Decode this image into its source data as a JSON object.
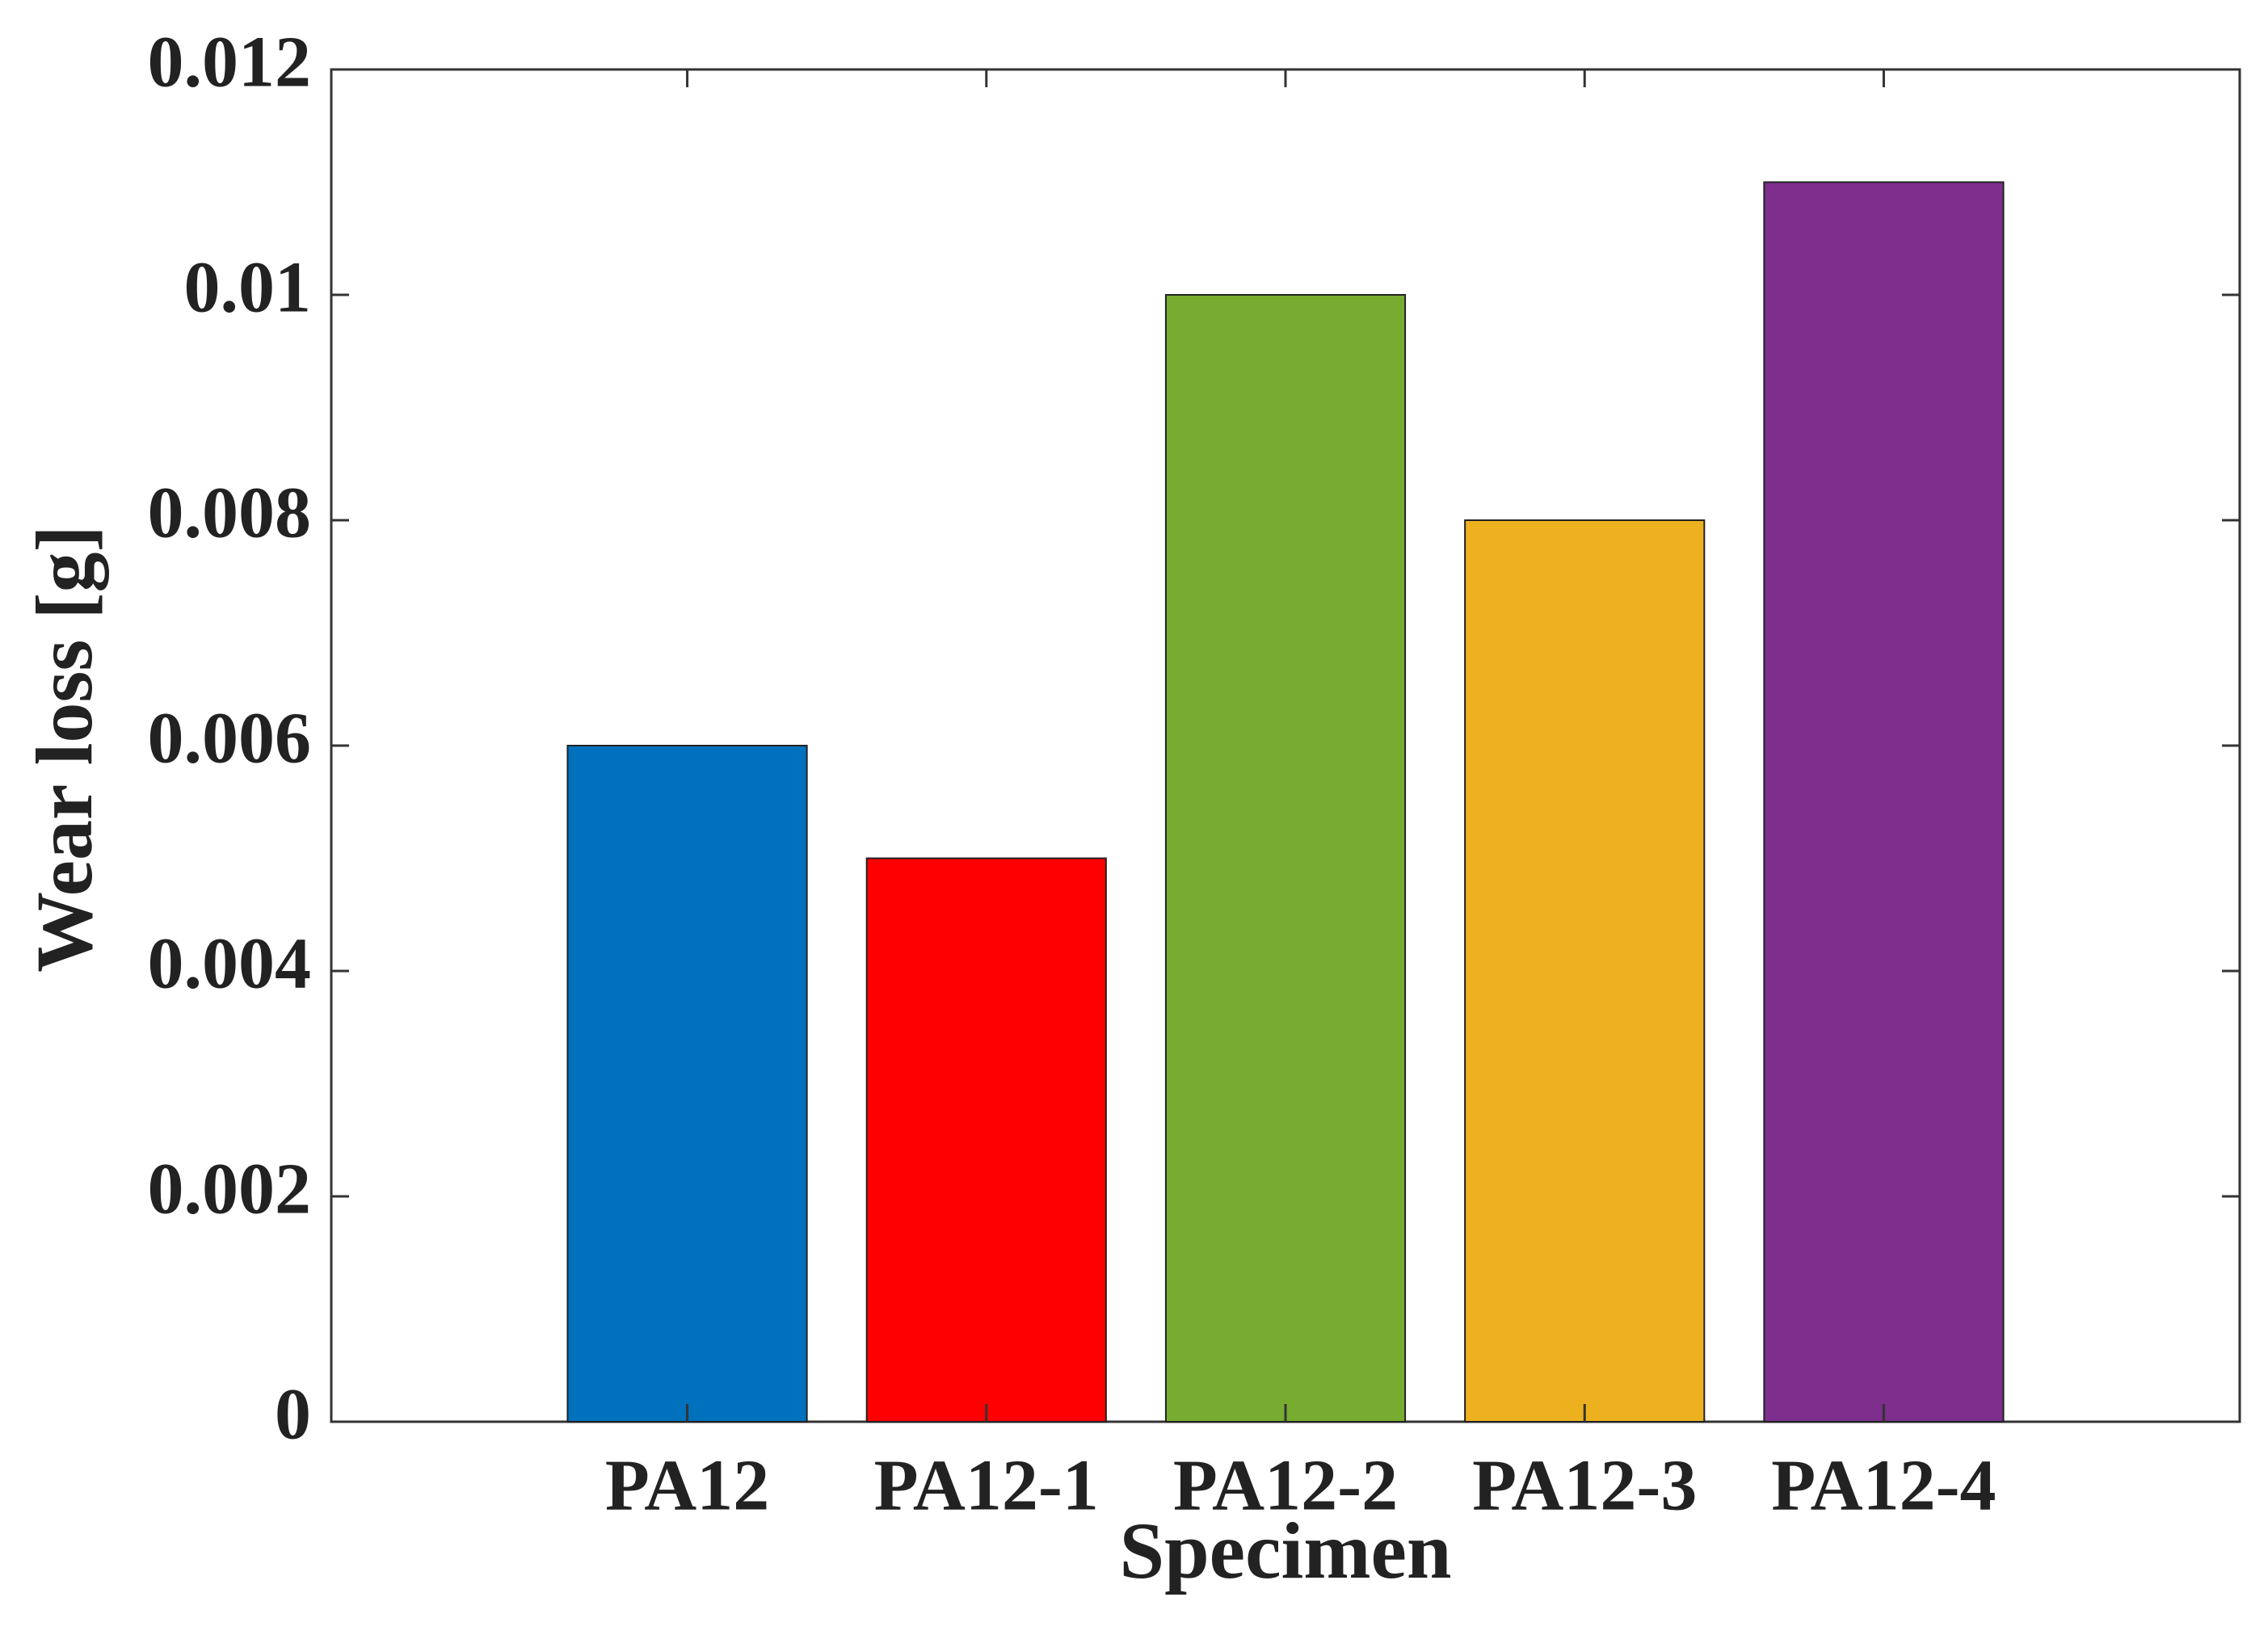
{
  "chart_data": {
    "type": "bar",
    "xlabel": "Specimen",
    "ylabel": "Wear loss [g]",
    "categories": [
      "PA12",
      "PA12-1",
      "PA12-2",
      "PA12-3",
      "PA12-4"
    ],
    "values": [
      0.006,
      0.005,
      0.01,
      0.008,
      0.011
    ],
    "colors": [
      "#0072BD",
      "#FF0000",
      "#77AC30",
      "#EDB120",
      "#7E2F8E"
    ],
    "ylim": [
      0,
      0.012
    ],
    "yticks": [
      0,
      0.002,
      0.004,
      0.006,
      0.008,
      0.01,
      0.012
    ],
    "grid": false
  }
}
